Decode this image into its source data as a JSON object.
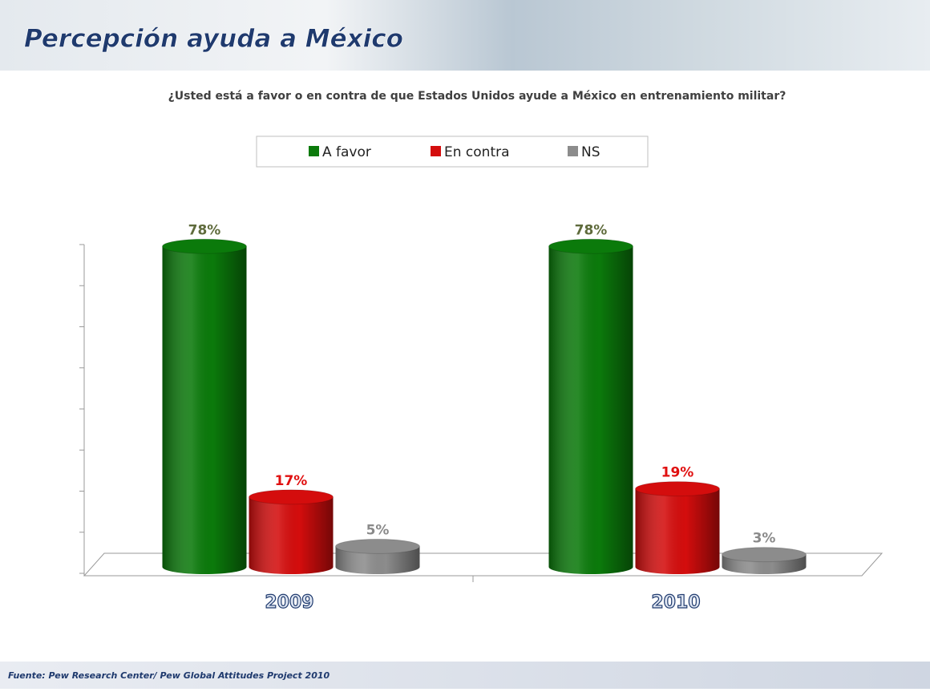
{
  "chart_data": {
    "type": "bar3d",
    "title": "Percepción ayuda a México",
    "subtitle": "¿Usted está a favor o en contra de que Estados Unidos ayude a México en entrenamiento militar?",
    "source": "Fuente: Pew Research Center/ Pew Global Attitudes Project 2010",
    "categories": [
      "2009",
      "2010"
    ],
    "series": [
      {
        "name": "A favor",
        "color": "#0b7a0b",
        "label_color": "#5f6b3c",
        "values": [
          78,
          78
        ],
        "value_labels": [
          "78%",
          "78%"
        ]
      },
      {
        "name": "En contra",
        "color": "#d40d0d",
        "label_color": "#e01010",
        "values": [
          17,
          19
        ],
        "value_labels": [
          "17%",
          "19%"
        ]
      },
      {
        "name": "NS",
        "color": "#8c8c8c",
        "label_color": "#8a8a8a",
        "values": [
          5,
          3
        ],
        "value_labels": [
          "5%",
          "3%"
        ]
      }
    ],
    "ylim": [
      0,
      80
    ],
    "yticks": [
      0,
      10,
      20,
      30,
      40,
      50,
      60,
      70,
      80
    ]
  }
}
